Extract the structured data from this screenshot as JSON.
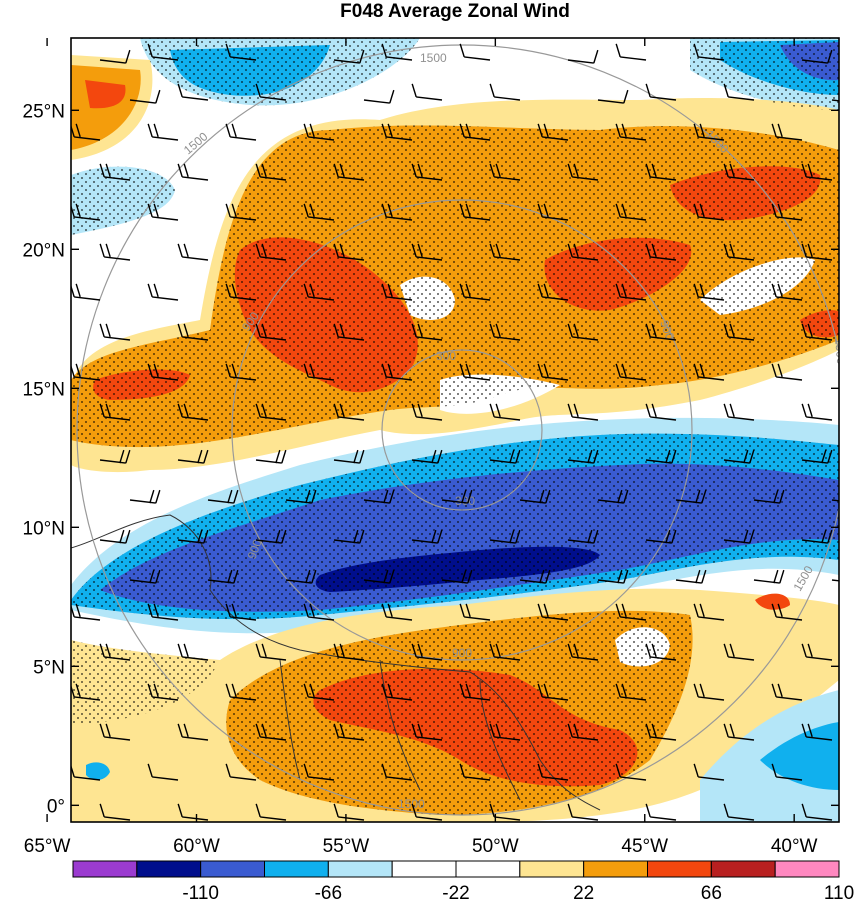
{
  "title": "F048 Average Zonal Wind",
  "y_axis": {
    "ticks": [
      "25°N",
      "20°N",
      "15°N",
      "10°N",
      "5°N",
      "0°"
    ],
    "values": [
      25,
      20,
      15,
      10,
      5,
      0
    ]
  },
  "x_axis": {
    "ticks": [
      "65°W",
      "60°W",
      "55°W",
      "50°W",
      "45°W",
      "40°W"
    ],
    "values": [
      -65,
      -60,
      -55,
      -50,
      -45,
      -40
    ]
  },
  "map_extent": {
    "lon": [
      -64.2,
      -38.5
    ],
    "lat": [
      -0.6,
      27.6
    ]
  },
  "colorbar": {
    "labels": [
      "-110",
      "-66",
      "-22",
      "22",
      "66",
      "110"
    ],
    "colors": [
      "#9b3bd0",
      "#000e8c",
      "#3a5bd1",
      "#10b0ee",
      "#b4e6f8",
      "#ffffff",
      "#ffffff",
      "#fee592",
      "#f49d0c",
      "#f3470e",
      "#b82020",
      "#ff88c0"
    ]
  },
  "range_ring_labels": [
    "1500",
    "1500",
    "1500",
    "1500",
    "1500",
    "1500",
    "900",
    "900",
    "900",
    "900",
    "300",
    "300"
  ],
  "legend_semantics": {
    "stippling": "dot-pattern-overlay",
    "barbs": "wind-barbs"
  },
  "palette": {
    "frame": "#000000",
    "ring": "#999999",
    "coast": "#333333"
  }
}
